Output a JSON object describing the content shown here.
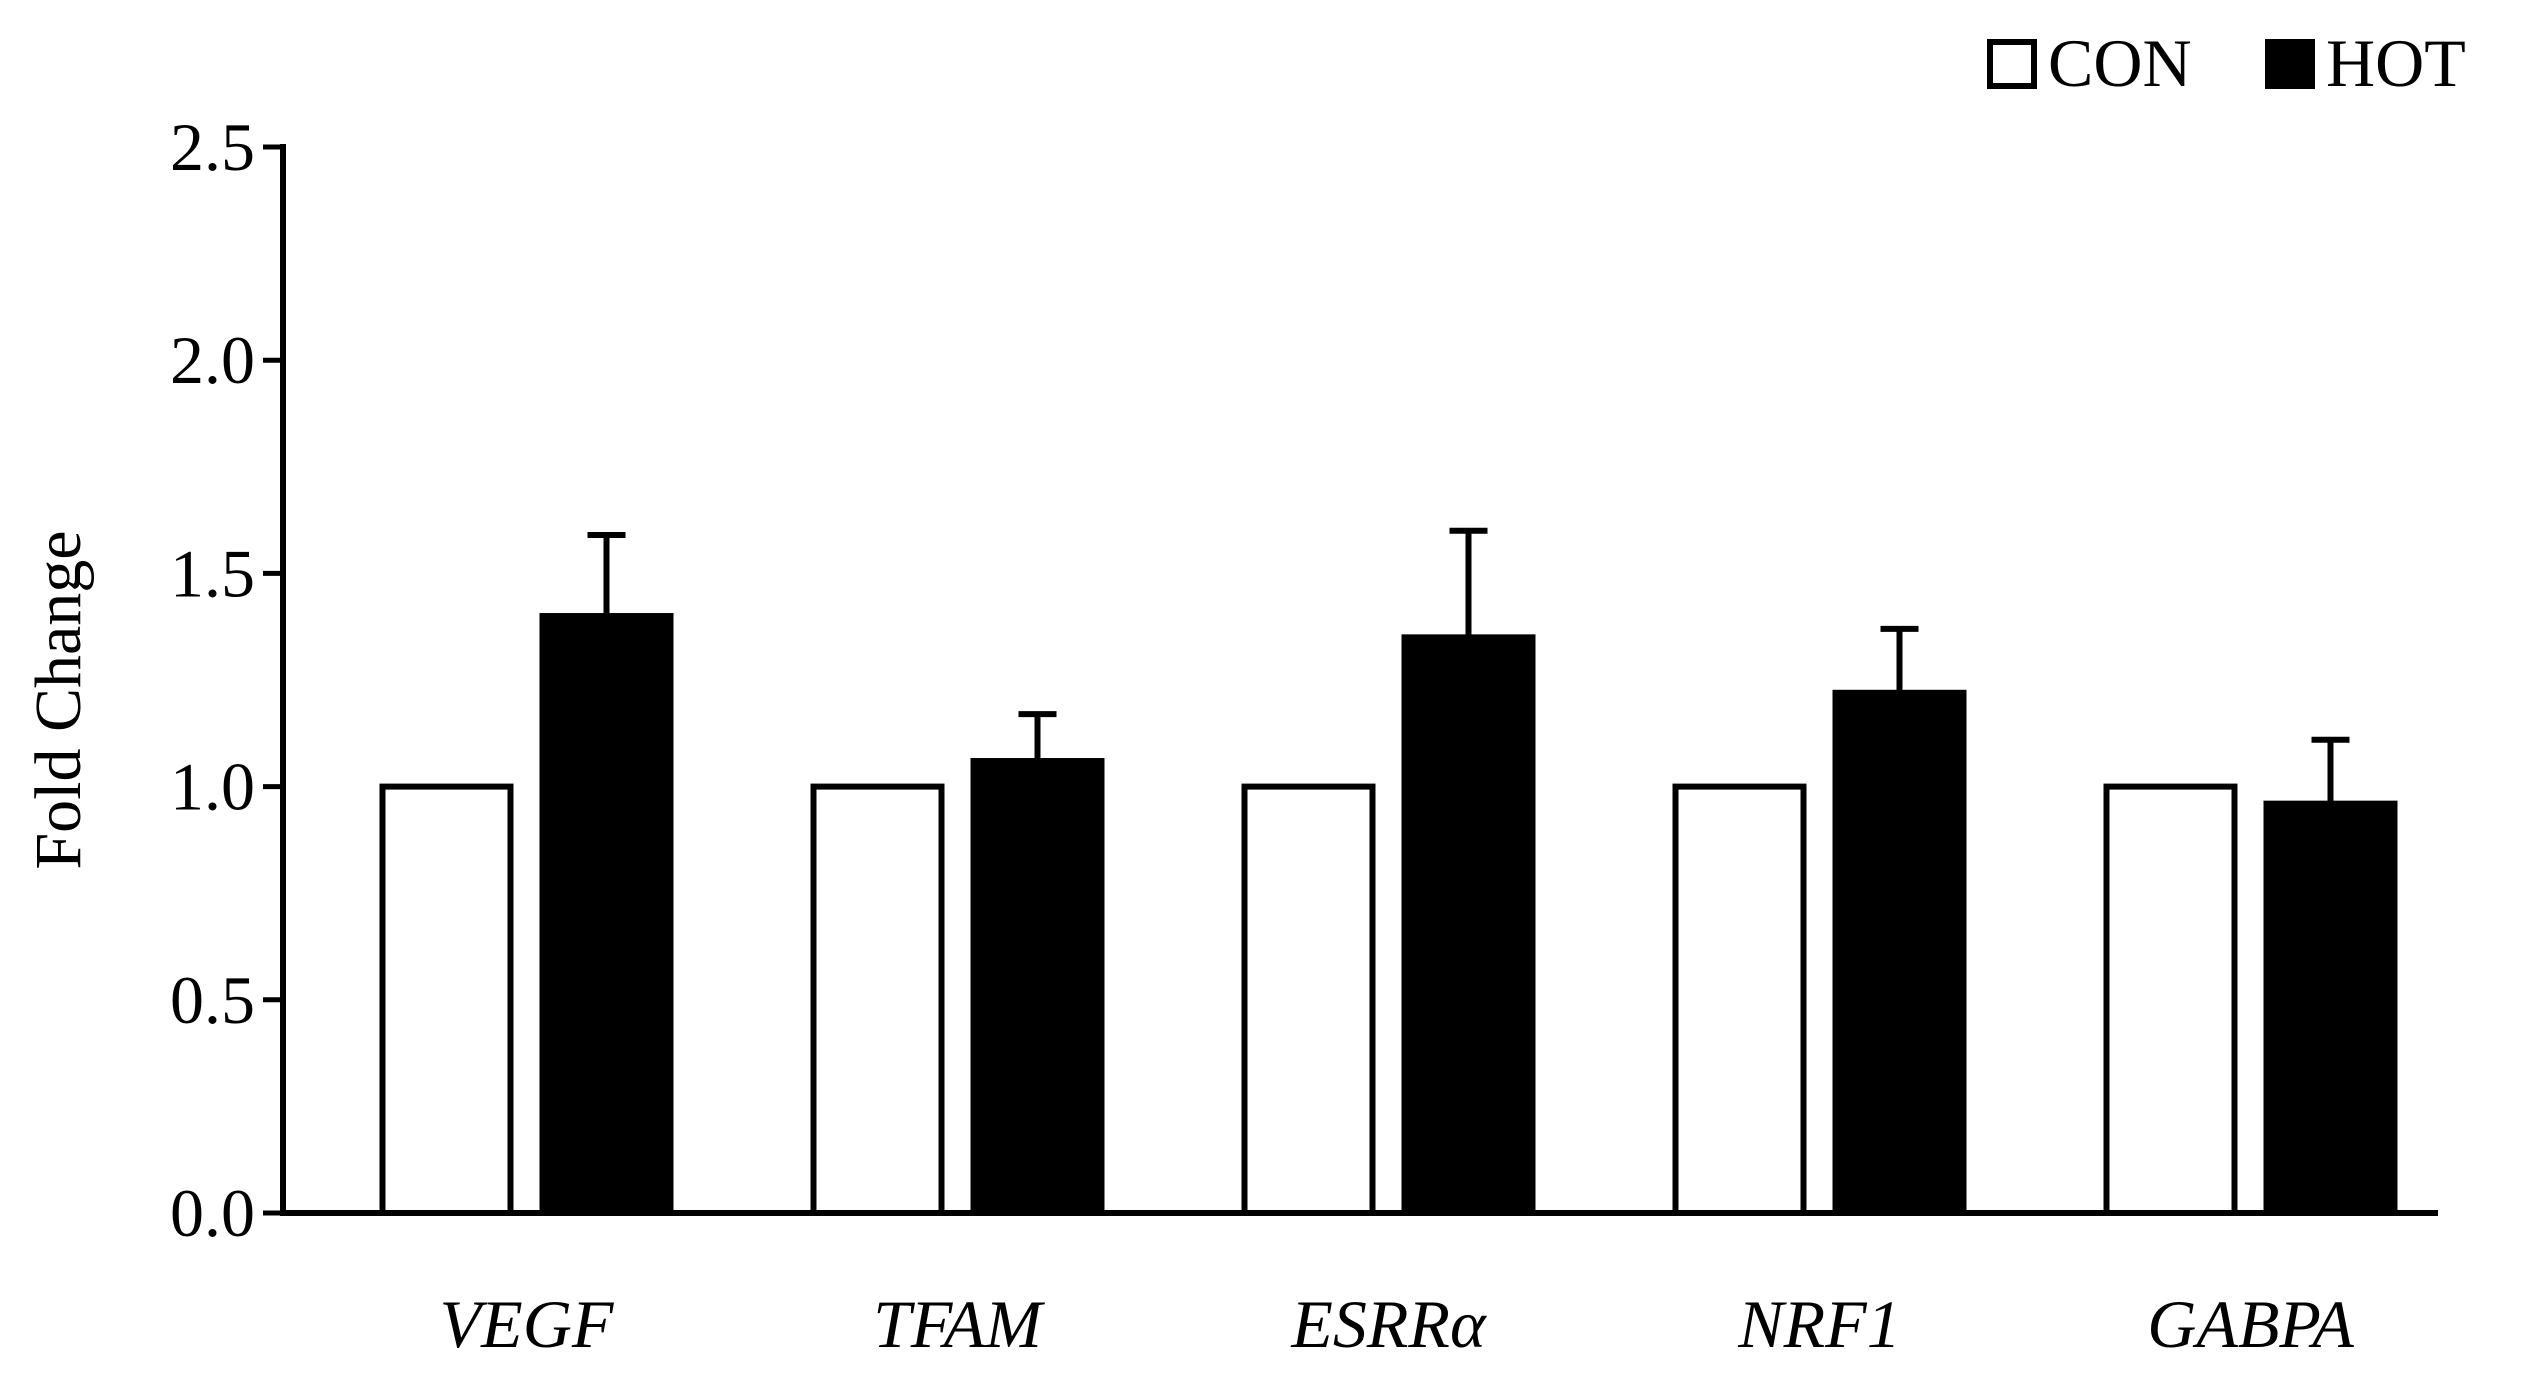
{
  "chart_data": {
    "type": "bar",
    "title": "",
    "xlabel": "",
    "ylabel": "Fold Change",
    "ylim": [
      0,
      2.5
    ],
    "yticks": [
      "0.0",
      "0.5",
      "1.0",
      "1.5",
      "2.0",
      "2.5"
    ],
    "categories": [
      "VEGF",
      "TFAM",
      "ESRRα",
      "NRF1",
      "GABPA"
    ],
    "legend_position": "top-right",
    "series": [
      {
        "name": "CON",
        "fill": "#ffffff",
        "values": [
          1.0,
          1.0,
          1.0,
          1.0,
          1.0
        ],
        "errors": [
          0,
          0,
          0,
          0,
          0
        ]
      },
      {
        "name": "HOT",
        "fill": "#000000",
        "values": [
          1.4,
          1.06,
          1.35,
          1.22,
          0.96
        ],
        "errors": [
          0.19,
          0.11,
          0.25,
          0.15,
          0.15
        ]
      }
    ]
  }
}
